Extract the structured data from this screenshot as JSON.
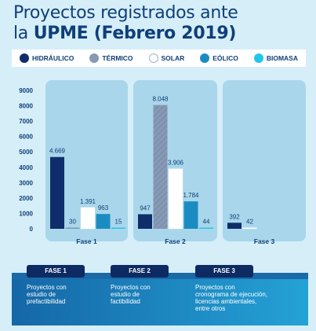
{
  "title": {
    "line1": "Proyectos registrados ante",
    "line2_prefix": "la ",
    "line2_bold": "UPME (Febrero 2019)"
  },
  "legend": [
    {
      "label": "HIDRÁULICO",
      "color": "#0f2d6a"
    },
    {
      "label": "TÉRMICO",
      "color": "#8799b3"
    },
    {
      "label": "SOLAR",
      "color": "#ffffff"
    },
    {
      "label": "EÓLICO",
      "color": "#1b8cc2"
    },
    {
      "label": "BIOMASA",
      "color": "#22c6ea"
    }
  ],
  "chart_data": {
    "type": "bar",
    "categories": [
      "Fase 1",
      "Fase 2",
      "Fase 3"
    ],
    "series": [
      {
        "name": "HIDRÁULICO",
        "values": [
          4669,
          947,
          392
        ],
        "labels": [
          "4.669",
          "947",
          "392"
        ]
      },
      {
        "name": "TÉRMICO",
        "values": [
          30,
          8048,
          null
        ],
        "labels": [
          "30",
          "8.048",
          null
        ]
      },
      {
        "name": "SOLAR",
        "values": [
          1391,
          3906,
          42
        ],
        "labels": [
          "1.391",
          "3.906",
          "42"
        ]
      },
      {
        "name": "EÓLICO",
        "values": [
          963,
          1784,
          null
        ],
        "labels": [
          "963",
          "1.784",
          null
        ]
      },
      {
        "name": "BIOMASA",
        "values": [
          15,
          44,
          null
        ],
        "labels": [
          "15",
          "44",
          null
        ]
      }
    ],
    "yticks": [
      "9000",
      "8000",
      "7000",
      "6000",
      "5000",
      "4000",
      "3000",
      "2000",
      "1000",
      "0"
    ],
    "ylim": [
      0,
      9000
    ],
    "grid": false,
    "legend_position": "top"
  },
  "phases": [
    {
      "badge": "FASE 1",
      "desc": [
        "Proyectos con",
        "estudio de",
        "prefactibilidad"
      ]
    },
    {
      "badge": "FASE 2",
      "desc": [
        "Proyectos con",
        "estudio de",
        "factibilidad"
      ]
    },
    {
      "badge": "FASE 3",
      "desc": [
        "Proyectos con",
        "cronograma de ejecución,",
        "licencias ambientales,",
        "entre otros"
      ]
    }
  ],
  "colors": {
    "panel": "#a9d6ea",
    "text_dark": "#0f3f78",
    "badge": "#0d2a62"
  }
}
